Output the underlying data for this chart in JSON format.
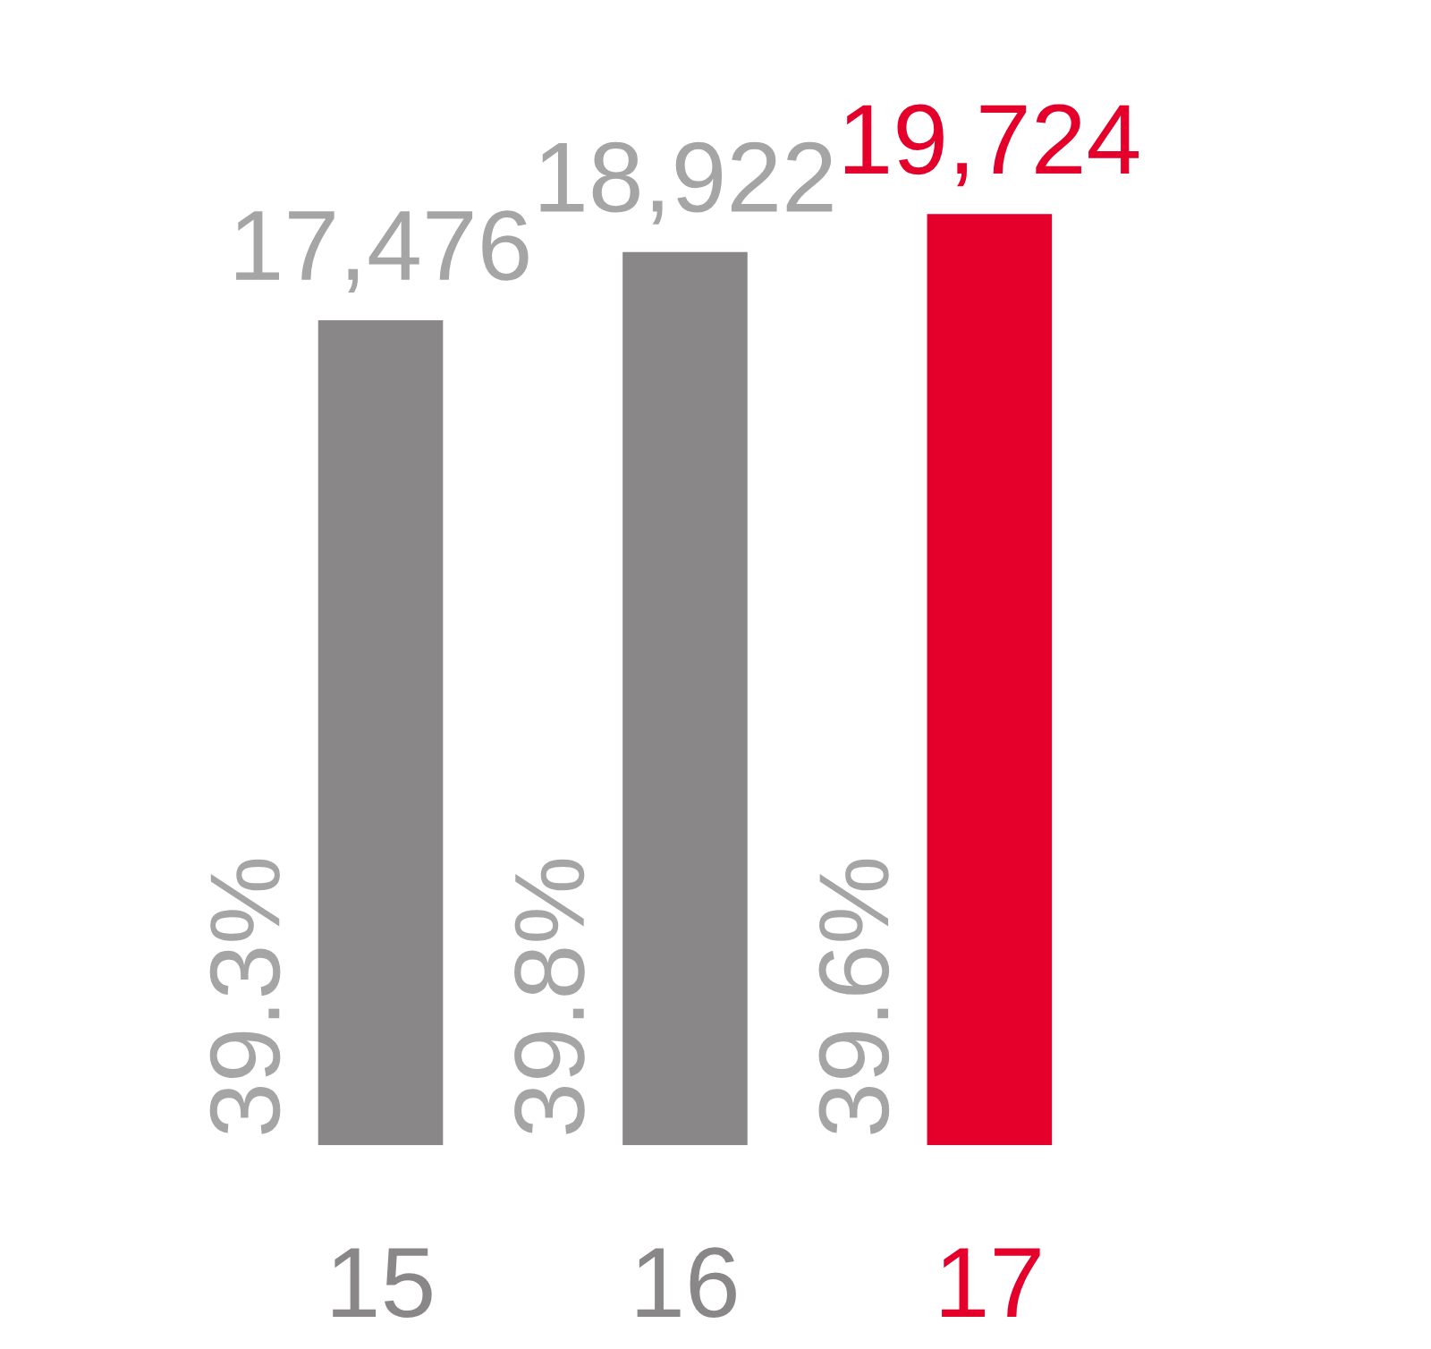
{
  "chart_data": {
    "type": "bar",
    "categories": [
      "15",
      "16",
      "17"
    ],
    "values": [
      17476,
      18922,
      19724
    ],
    "colors": [
      "#898788",
      "#898788",
      "#e4002b"
    ],
    "value_labels": [
      "17,476",
      "18,922",
      "19,724"
    ],
    "annotations": [
      "39.3%",
      "39.8%",
      "39.6%"
    ],
    "grid": false,
    "legend": false
  }
}
